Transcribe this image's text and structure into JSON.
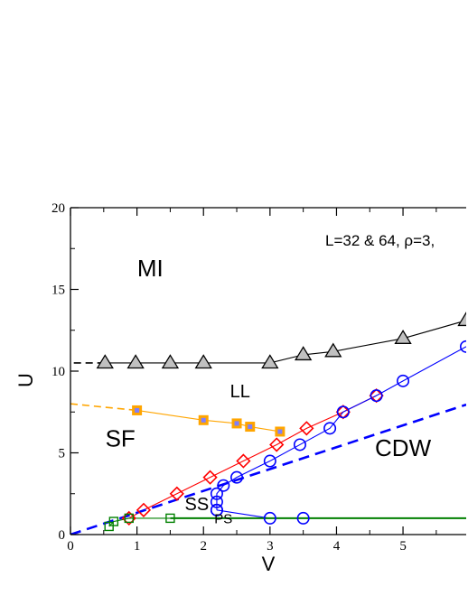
{
  "chart_data": {
    "type": "scatter",
    "title": "",
    "xlabel": "V",
    "ylabel": "U",
    "xlim": [
      0,
      5.95
    ],
    "ylim": [
      0,
      20
    ],
    "xticks": [
      0,
      1,
      2,
      3,
      4,
      5
    ],
    "yticks": [
      0,
      5,
      10,
      15,
      20
    ],
    "annotation": "L=32 & 64, ρ=3,",
    "region_labels": [
      {
        "text": "MI",
        "x": 1.2,
        "y": 15.8
      },
      {
        "text": "LL",
        "x": 2.55,
        "y": 8.4
      },
      {
        "text": "SF",
        "x": 0.75,
        "y": 5.4
      },
      {
        "text": "CDW",
        "x": 5.0,
        "y": 4.8
      },
      {
        "text": "SS",
        "x": 1.9,
        "y": 1.5
      },
      {
        "text": "PS",
        "x": 2.3,
        "y": 0.7
      }
    ],
    "series": [
      {
        "name": "",
        "color": "#000000",
        "marker": "triangle",
        "line": "solid",
        "x": [
          0.52,
          0.98,
          1.5,
          2.0,
          3.0,
          3.5,
          3.95,
          5.0,
          5.95
        ],
        "y": [
          10.5,
          10.5,
          10.5,
          10.5,
          10.5,
          11.0,
          11.2,
          12.0,
          13.1
        ]
      },
      {
        "name": "",
        "color": "#000000",
        "marker": "none",
        "line": "dashed",
        "x": [
          0.05,
          0.52
        ],
        "y": [
          10.5,
          10.5
        ]
      },
      {
        "name": "",
        "color": "#ffa500",
        "marker": "square-filled",
        "line": "solid",
        "x": [
          1.0,
          2.0,
          2.5,
          2.7,
          3.15
        ],
        "y": [
          7.6,
          7.0,
          6.8,
          6.6,
          6.3
        ]
      },
      {
        "name": "",
        "color": "#ffa500",
        "marker": "none",
        "line": "dashed",
        "x": [
          0.0,
          1.0
        ],
        "y": [
          8.0,
          7.6
        ]
      },
      {
        "name": "",
        "color": "#ff0000",
        "marker": "diamond",
        "line": "solid",
        "x": [
          0.88,
          1.1,
          1.6,
          2.1,
          2.6,
          3.1,
          3.55,
          4.1,
          4.6
        ],
        "y": [
          1.0,
          1.5,
          2.5,
          3.5,
          4.5,
          5.5,
          6.5,
          7.5,
          8.5
        ]
      },
      {
        "name": "",
        "color": "#0000ff",
        "marker": "circle",
        "line": "solid",
        "x": [
          2.2,
          2.2,
          2.2,
          2.3,
          2.5,
          3.0,
          3.45,
          3.9,
          4.1,
          4.6,
          5.0,
          5.95
        ],
        "y": [
          1.5,
          2.0,
          2.5,
          3.0,
          3.5,
          4.5,
          5.5,
          6.5,
          7.5,
          8.5,
          9.4,
          11.5
        ]
      },
      {
        "name": "",
        "color": "#0000ff",
        "marker": "circle",
        "line": "solid",
        "x": [
          2.2,
          3.0,
          3.5
        ],
        "y": [
          1.5,
          1.0,
          1.0
        ]
      },
      {
        "name": "",
        "color": "#0000ff",
        "marker": "none",
        "line": "dashed",
        "x": [
          0.0,
          5.95
        ],
        "y": [
          0.0,
          7.95
        ]
      },
      {
        "name": "",
        "color": "#008000",
        "marker": "square",
        "line": "solid",
        "x": [
          0.58,
          0.65,
          0.88,
          1.5
        ],
        "y": [
          0.5,
          0.8,
          1.0,
          1.0
        ]
      },
      {
        "name": "",
        "color": "#008000",
        "marker": "none",
        "line": "solid",
        "x": [
          1.5,
          5.95
        ],
        "y": [
          1.0,
          1.0
        ]
      }
    ]
  }
}
